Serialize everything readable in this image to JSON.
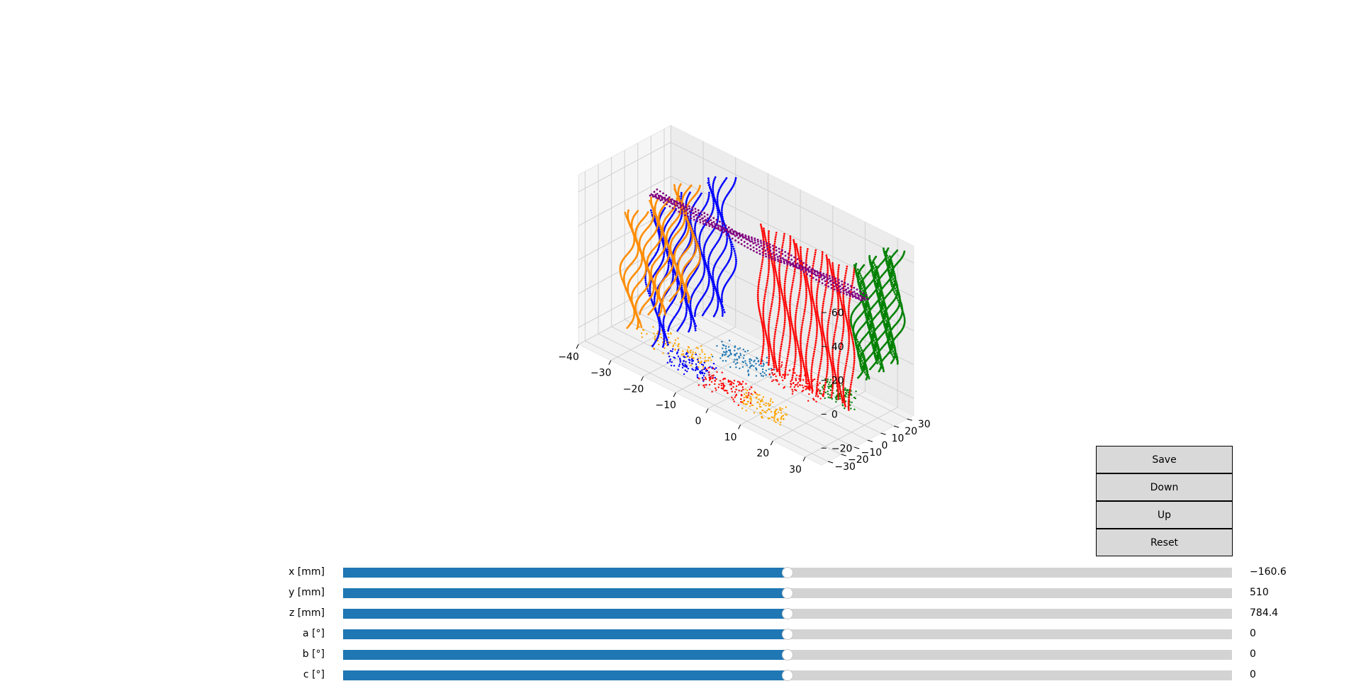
{
  "chart_data": {
    "type": "scatter",
    "projection": "3d",
    "title": "",
    "xlabel": "",
    "ylabel": "",
    "zlabel": "",
    "x_ticks": [
      "−40",
      "−30",
      "−20",
      "−10",
      "0",
      "10",
      "20",
      "30"
    ],
    "y_ticks": [
      "−30",
      "−20",
      "−10",
      "0",
      "10",
      "20",
      "30"
    ],
    "z_ticks": [
      "−20",
      "0",
      "20",
      "40",
      "60"
    ],
    "xlim": [
      -40,
      35
    ],
    "ylim": [
      -35,
      35
    ],
    "zlim": [
      -30,
      70
    ],
    "grid": true,
    "series": [
      {
        "color": "#0000ff",
        "plane": "x",
        "x": -20,
        "z0": -15,
        "z1": 62,
        "y0": -28,
        "y1": 30
      },
      {
        "color": "#ff8c00",
        "plane": "x",
        "x": -27,
        "z0": -10,
        "z1": 55,
        "y0": -30,
        "y1": 20
      },
      {
        "color": "#ff0000",
        "plane": "y",
        "y": 5,
        "z0": -20,
        "z1": 62,
        "x0": 0,
        "x1": 28
      },
      {
        "color": "#008000",
        "plane": "x",
        "x": 30,
        "z0": 0,
        "z1": 64,
        "y0": 5,
        "y1": 35
      },
      {
        "color": "#800080",
        "plane": "z",
        "z": 45,
        "x0": -35,
        "x1": 30,
        "y": 10
      }
    ],
    "floor_clusters": [
      {
        "color": "#ffa500",
        "xc": -20,
        "yc": -10,
        "spread": 12
      },
      {
        "color": "#0000ff",
        "xc": -12,
        "yc": -18,
        "spread": 8
      },
      {
        "color": "#ff0000",
        "xc": 0,
        "yc": -20,
        "spread": 9
      },
      {
        "color": "#ffa500",
        "xc": 12,
        "yc": -22,
        "spread": 8
      },
      {
        "color": "#1f77b4",
        "xc": -5,
        "yc": 5,
        "spread": 10
      },
      {
        "color": "#ff0000",
        "xc": 10,
        "yc": 8,
        "spread": 9
      },
      {
        "color": "#008000",
        "xc": 20,
        "yc": 15,
        "spread": 6
      }
    ]
  },
  "buttons": [
    {
      "label": "Save"
    },
    {
      "label": "Down"
    },
    {
      "label": "Up"
    },
    {
      "label": "Reset"
    }
  ],
  "sliders": [
    {
      "label": "x [mm]",
      "value": "−160.6",
      "fraction": 0.5
    },
    {
      "label": "y [mm]",
      "value": "510",
      "fraction": 0.5
    },
    {
      "label": "z [mm]",
      "value": "784.4",
      "fraction": 0.5
    },
    {
      "label": "a [°]",
      "value": "0",
      "fraction": 0.5
    },
    {
      "label": "b [°]",
      "value": "0",
      "fraction": 0.5
    },
    {
      "label": "c [°]",
      "value": "0",
      "fraction": 0.5
    }
  ],
  "colors": {
    "slider_fill": "#1f77b4",
    "slider_track": "#d3d3d3",
    "button_bg": "#d9d9d9",
    "pane": "#f2f2f2"
  }
}
